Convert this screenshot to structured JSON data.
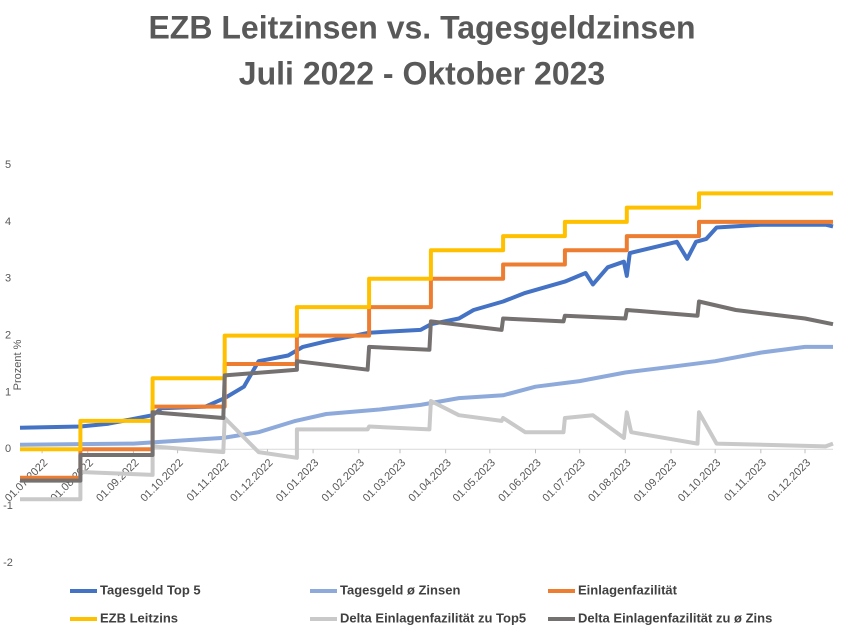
{
  "chart_data": {
    "type": "line",
    "title": [
      "EZB Leitzinsen vs. Tagesgeldzinsen",
      "Juli 2022 - Oktober 2023"
    ],
    "ylabel": "Prozent %",
    "xlim": [
      "16.06.2022",
      "20.12.2023"
    ],
    "xticks": [
      "01.07.2022",
      "01.08.2022",
      "01.09.2022",
      "01.10.2022",
      "01.11.2022",
      "01.12.2022",
      "01.01.2023",
      "01.02.2023",
      "01.03.2023",
      "01.04.2023",
      "01.05.2023",
      "01.06.2023",
      "01.07.2023",
      "01.08.2023",
      "01.09.2023",
      "01.10.2023",
      "01.11.2023",
      "01.12.2023"
    ],
    "ylim": [
      -2,
      5
    ],
    "yticks": [
      -2,
      -1,
      0,
      1,
      2,
      3,
      4,
      5
    ],
    "grid": false,
    "legend": "bottom",
    "series": [
      {
        "name": "Tagesgeld Top 5",
        "color": "#4472c4",
        "x": [
          "16.06.2022",
          "27.07.2022",
          "15.08.2022",
          "14.09.2022",
          "20.09.2022",
          "20.10.2022",
          "02.11.2022",
          "15.11.2022",
          "25.11.2022",
          "15.12.2022",
          "25.12.2022",
          "10.01.2023",
          "08.02.2023",
          "15.03.2023",
          "22.03.2023",
          "10.04.2023",
          "20.04.2023",
          "10.05.2023",
          "25.05.2023",
          "21.06.2023",
          "05.07.2023",
          "10.07.2023",
          "20.07.2023",
          "31.07.2023",
          "02.08.2023",
          "04.08.2023",
          "05.09.2023",
          "12.09.2023",
          "18.09.2023",
          "25.09.2023",
          "02.10.2023",
          "01.11.2023",
          "15.12.2023",
          "20.12.2023"
        ],
        "values": [
          0.38,
          0.4,
          0.45,
          0.6,
          0.72,
          0.75,
          0.9,
          1.1,
          1.55,
          1.65,
          1.8,
          1.9,
          2.05,
          2.1,
          2.2,
          2.3,
          2.45,
          2.6,
          2.75,
          2.95,
          3.1,
          2.9,
          3.2,
          3.3,
          3.05,
          3.45,
          3.65,
          3.35,
          3.65,
          3.7,
          3.9,
          3.95,
          3.95,
          3.92
        ]
      },
      {
        "name": "Tagesgeld ø Zinsen",
        "color": "#8eaadb",
        "x": [
          "16.06.2022",
          "01.09.2022",
          "01.10.2022",
          "01.11.2022",
          "25.11.2022",
          "20.12.2022",
          "10.01.2023",
          "15.02.2023",
          "15.03.2023",
          "10.04.2023",
          "10.05.2023",
          "01.06.2023",
          "01.07.2023",
          "01.08.2023",
          "01.09.2023",
          "01.10.2023",
          "01.11.2023",
          "01.12.2023",
          "20.12.2023"
        ],
        "values": [
          0.08,
          0.1,
          0.15,
          0.2,
          0.3,
          0.5,
          0.62,
          0.7,
          0.78,
          0.9,
          0.95,
          1.1,
          1.2,
          1.35,
          1.45,
          1.55,
          1.7,
          1.8,
          1.8
        ]
      },
      {
        "name": "Einlagenfazilität",
        "color": "#ed7d31",
        "x": [
          "16.06.2022",
          "27.07.2022",
          "27.07.2022",
          "14.09.2022",
          "14.09.2022",
          "02.11.2022",
          "02.11.2022",
          "21.12.2022",
          "21.12.2022",
          "08.02.2023",
          "08.02.2023",
          "22.03.2023",
          "22.03.2023",
          "10.05.2023",
          "10.05.2023",
          "21.06.2023",
          "21.06.2023",
          "02.08.2023",
          "02.08.2023",
          "20.09.2023",
          "20.09.2023",
          "20.12.2023"
        ],
        "values": [
          -0.5,
          -0.5,
          0,
          0,
          0.75,
          0.75,
          1.5,
          1.5,
          2,
          2,
          2.5,
          2.5,
          3,
          3,
          3.25,
          3.25,
          3.5,
          3.5,
          3.75,
          3.75,
          4,
          4
        ]
      },
      {
        "name": "EZB Leitzins",
        "color": "#ffc000",
        "x": [
          "16.06.2022",
          "27.07.2022",
          "27.07.2022",
          "14.09.2022",
          "14.09.2022",
          "02.11.2022",
          "02.11.2022",
          "21.12.2022",
          "21.12.2022",
          "08.02.2023",
          "08.02.2023",
          "22.03.2023",
          "22.03.2023",
          "10.05.2023",
          "10.05.2023",
          "21.06.2023",
          "21.06.2023",
          "02.08.2023",
          "02.08.2023",
          "20.09.2023",
          "20.09.2023",
          "20.12.2023"
        ],
        "values": [
          0,
          0,
          0.5,
          0.5,
          1.25,
          1.25,
          2,
          2,
          2.5,
          2.5,
          3,
          3,
          3.5,
          3.5,
          3.75,
          3.75,
          4,
          4,
          4.25,
          4.25,
          4.5,
          4.5
        ]
      },
      {
        "name": "Delta Einlagenfazilität zu Top5",
        "color": "#c9c9c9",
        "x": [
          "16.06.2022",
          "27.07.2022",
          "27.07.2022",
          "14.09.2022",
          "14.09.2022",
          "01.11.2022",
          "02.11.2022",
          "25.11.2022",
          "21.12.2022",
          "21.12.2022",
          "07.02.2023",
          "08.02.2023",
          "21.03.2023",
          "22.03.2023",
          "10.04.2023",
          "09.05.2023",
          "10.05.2023",
          "25.05.2023",
          "20.06.2023",
          "21.06.2023",
          "10.07.2023",
          "31.07.2023",
          "02.08.2023",
          "05.08.2023",
          "19.09.2023",
          "20.09.2023",
          "02.10.2023",
          "15.12.2023",
          "20.12.2023"
        ],
        "values": [
          -0.88,
          -0.88,
          -0.4,
          -0.45,
          0.05,
          -0.05,
          0.55,
          -0.05,
          -0.15,
          0.35,
          0.35,
          0.4,
          0.35,
          0.85,
          0.6,
          0.5,
          0.55,
          0.3,
          0.3,
          0.55,
          0.6,
          0.2,
          0.65,
          0.3,
          0.1,
          0.65,
          0.1,
          0.05,
          0.1
        ]
      },
      {
        "name": "Delta Einlagenfazilität zu ø Zins",
        "color": "#767171",
        "x": [
          "16.06.2022",
          "27.07.2022",
          "27.07.2022",
          "14.09.2022",
          "14.09.2022",
          "01.11.2022",
          "02.11.2022",
          "21.12.2022",
          "21.12.2022",
          "07.02.2023",
          "08.02.2023",
          "21.03.2023",
          "22.03.2023",
          "09.05.2023",
          "10.05.2023",
          "20.06.2023",
          "21.06.2023",
          "01.08.2023",
          "02.08.2023",
          "19.09.2023",
          "20.09.2023",
          "15.10.2023",
          "01.12.2023",
          "20.12.2023"
        ],
        "values": [
          -0.55,
          -0.55,
          -0.1,
          -0.1,
          0.65,
          0.55,
          1.3,
          1.4,
          1.55,
          1.4,
          1.8,
          1.75,
          2.25,
          2.1,
          2.3,
          2.25,
          2.35,
          2.3,
          2.45,
          2.35,
          2.6,
          2.45,
          2.3,
          2.2
        ]
      }
    ]
  }
}
